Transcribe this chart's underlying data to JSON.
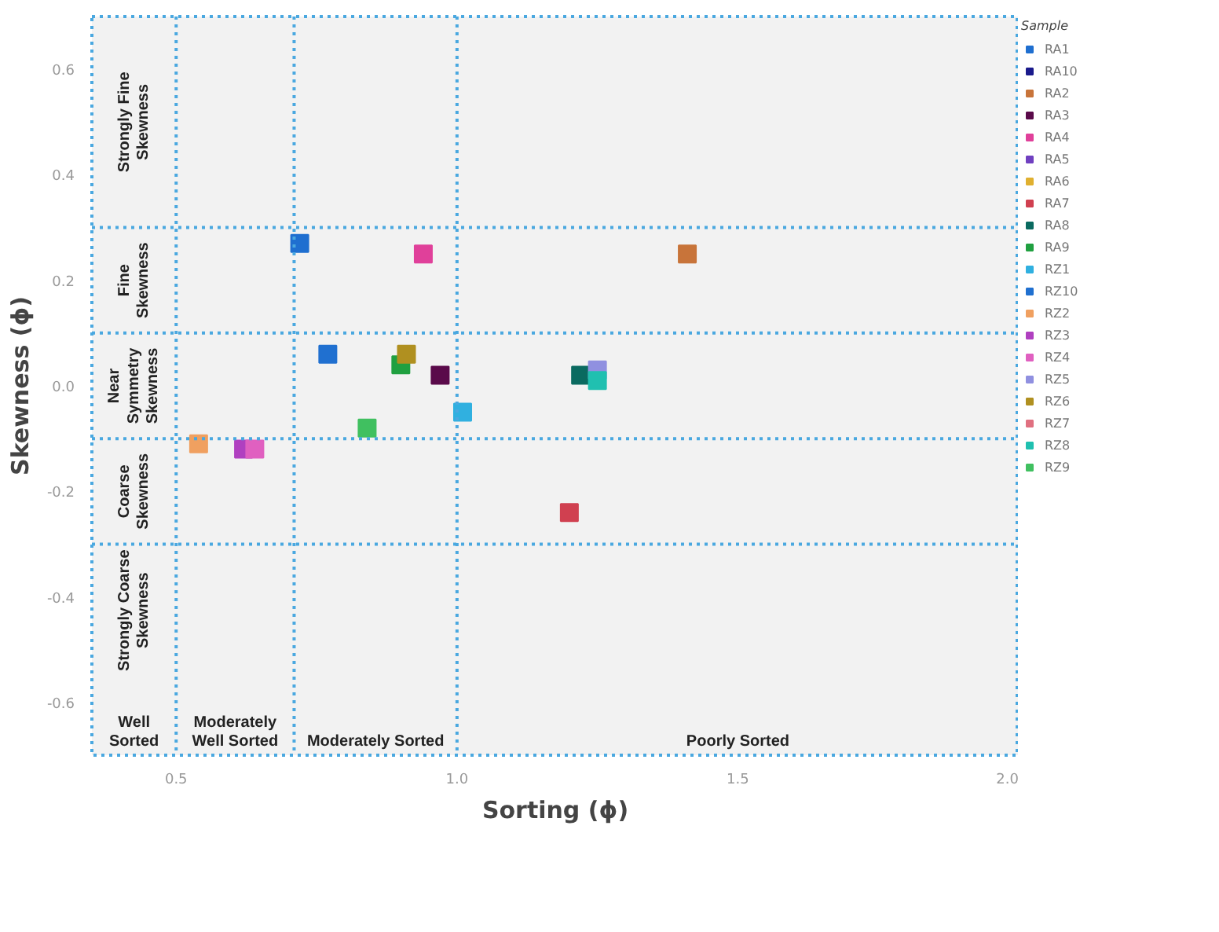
{
  "chart_data": {
    "type": "scatter",
    "xlabel": "Sorting (ϕ)",
    "ylabel": "Skewness (ϕ)",
    "legend_title": "Sample",
    "legend": "right",
    "marker": "square",
    "grid": false,
    "xlim": [
      0.35,
      2.0
    ],
    "xticks": [
      0.5,
      {
        "value": 1,
        "label": "1.0"
      },
      1.5,
      {
        "value": 2,
        "label": "2.0"
      }
    ],
    "ylim": [
      -0.7,
      0.7
    ],
    "yticks": [
      0.6,
      0.4,
      0.2,
      {
        "value": 0,
        "label": "0.0"
      },
      -0.2,
      -0.4,
      -0.6
    ],
    "series": [
      {
        "name": "RA1",
        "color": "#1f6fd0",
        "x": [
          0.72
        ],
        "values": [
          0.27
        ]
      },
      {
        "name": "RA10",
        "color": "#1a1a8c"
      },
      {
        "name": "RA2",
        "color": "#c8743a",
        "x": [
          1.41
        ],
        "values": [
          0.25
        ]
      },
      {
        "name": "RA3",
        "color": "#5a0a4a",
        "x": [
          0.97
        ],
        "values": [
          0.02
        ]
      },
      {
        "name": "RA4",
        "color": "#e0409a",
        "x": [
          0.94
        ],
        "values": [
          0.25
        ]
      },
      {
        "name": "RA5",
        "color": "#7040c0"
      },
      {
        "name": "RA6",
        "color": "#e0b030"
      },
      {
        "name": "RA7",
        "color": "#d04050",
        "x": [
          1.2
        ],
        "values": [
          -0.24
        ]
      },
      {
        "name": "RA8",
        "color": "#0a6a60",
        "x": [
          1.22
        ],
        "values": [
          0.02
        ]
      },
      {
        "name": "RA9",
        "color": "#20a040",
        "x": [
          0.9
        ],
        "values": [
          0.04
        ]
      },
      {
        "name": "RZ1",
        "color": "#30b0e0",
        "x": [
          1.01
        ],
        "values": [
          -0.05
        ]
      },
      {
        "name": "RZ10",
        "color": "#2070d0",
        "x": [
          0.77
        ],
        "values": [
          0.06
        ]
      },
      {
        "name": "RZ2",
        "color": "#f0a060",
        "x": [
          0.54
        ],
        "values": [
          -0.11
        ]
      },
      {
        "name": "RZ3",
        "color": "#b040c0",
        "x": [
          0.62
        ],
        "values": [
          -0.12
        ]
      },
      {
        "name": "RZ4",
        "color": "#e060c0",
        "x": [
          0.64
        ],
        "values": [
          -0.12
        ]
      },
      {
        "name": "RZ5",
        "color": "#9090e0",
        "x": [
          1.25
        ],
        "values": [
          0.03
        ]
      },
      {
        "name": "RZ6",
        "color": "#b09020",
        "x": [
          0.91
        ],
        "values": [
          0.06
        ]
      },
      {
        "name": "RZ7",
        "color": "#e07080"
      },
      {
        "name": "RZ8",
        "color": "#20c0b0",
        "x": [
          1.25
        ],
        "values": [
          0.01
        ]
      },
      {
        "name": "RZ9",
        "color": "#40c060",
        "x": [
          0.84
        ],
        "values": [
          -0.08
        ]
      }
    ],
    "ref_lines": [
      {
        "axis": "x",
        "value": 0.5,
        "color": "#4aa8e0",
        "line_style": "dotted"
      },
      {
        "axis": "x",
        "value": 0.71,
        "color": "#4aa8e0",
        "line_style": "dotted"
      },
      {
        "axis": "x",
        "value": 1.0,
        "color": "#4aa8e0",
        "line_style": "dotted"
      },
      {
        "axis": "y",
        "value": 0.3,
        "color": "#4aa8e0",
        "line_style": "dotted"
      },
      {
        "axis": "y",
        "value": 0.1,
        "color": "#4aa8e0",
        "line_style": "dotted"
      },
      {
        "axis": "y",
        "value": -0.1,
        "color": "#4aa8e0",
        "line_style": "dotted"
      },
      {
        "axis": "y",
        "value": -0.3,
        "color": "#4aa8e0",
        "line_style": "dotted"
      }
    ],
    "annotations": [
      "Strongly Fine\nSkewness",
      "Fine\nSkewness",
      "Near\nSymmetry\nSkewness",
      "Coarse\nSkewness",
      "Strongly Coarse\nSkewness",
      "Well\nSorted",
      "Moderately\nWell Sorted",
      "Moderately Sorted",
      "Poorly Sorted"
    ]
  }
}
